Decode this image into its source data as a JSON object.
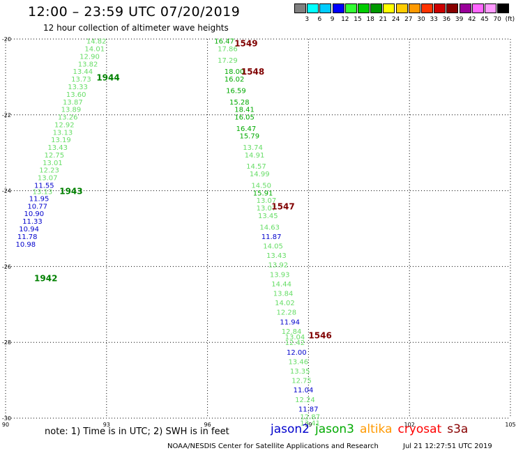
{
  "header": {
    "title": "12:00 – 23:59 UTC 07/20/2019",
    "subtitle": "12 hour collection of altimeter wave heights"
  },
  "colorbar": {
    "colors": [
      "#808080",
      "#00ffff",
      "#00ccff",
      "#0000ff",
      "#33ff33",
      "#00cc00",
      "#009900",
      "#ffff00",
      "#ffcc00",
      "#ff9900",
      "#ff3300",
      "#cc0000",
      "#880000",
      "#990099",
      "#ff66ff",
      "#ff99ff",
      "#000000"
    ],
    "labels": [
      "3",
      "6",
      "9",
      "12",
      "15",
      "18",
      "21",
      "24",
      "27",
      "30",
      "33",
      "36",
      "39",
      "42",
      "45",
      "70",
      "(ft)"
    ]
  },
  "map": {
    "lon_range": [
      90,
      105
    ],
    "lat_range": [
      -30,
      -20
    ],
    "x_ticks": [
      "90",
      "93",
      "96",
      "99",
      "102",
      "105"
    ],
    "y_ticks": [
      "-20",
      "-22",
      "-24",
      "-26",
      "-28",
      "-30"
    ],
    "grid": "dotted",
    "orbits": [
      {
        "label": "1944",
        "color": "#008000",
        "lon": 92.7,
        "lat": -21.0
      },
      {
        "label": "1943",
        "color": "#008000",
        "lon": 91.6,
        "lat": -24.0
      },
      {
        "label": "1942",
        "color": "#008000",
        "lon": 90.85,
        "lat": -26.3
      },
      {
        "label": "1549",
        "color": "#800000",
        "lon": 96.8,
        "lat": -20.1
      },
      {
        "label": "1548",
        "color": "#800000",
        "lon": 97.0,
        "lat": -20.85
      },
      {
        "label": "1547",
        "color": "#800000",
        "lon": 97.9,
        "lat": -24.4
      },
      {
        "label": "1546",
        "color": "#800000",
        "lon": 99.0,
        "lat": -27.8
      }
    ],
    "observations": [
      {
        "v": "14.82",
        "c": "#66dd66",
        "lon": 92.4,
        "lat": -20.05
      },
      {
        "v": "14.01",
        "c": "#66dd66",
        "lon": 92.35,
        "lat": -20.25
      },
      {
        "v": "12.90",
        "c": "#66dd66",
        "lon": 92.2,
        "lat": -20.45
      },
      {
        "v": "13.82",
        "c": "#66dd66",
        "lon": 92.15,
        "lat": -20.65
      },
      {
        "v": "13.44",
        "c": "#66dd66",
        "lon": 92.0,
        "lat": -20.85
      },
      {
        "v": "13.73",
        "c": "#66dd66",
        "lon": 91.95,
        "lat": -21.05
      },
      {
        "v": "13.33",
        "c": "#66dd66",
        "lon": 91.85,
        "lat": -21.25
      },
      {
        "v": "13.60",
        "c": "#66dd66",
        "lon": 91.8,
        "lat": -21.45
      },
      {
        "v": "13.87",
        "c": "#66dd66",
        "lon": 91.7,
        "lat": -21.65
      },
      {
        "v": "13.89",
        "c": "#66dd66",
        "lon": 91.65,
        "lat": -21.85
      },
      {
        "v": "13.26",
        "c": "#66dd66",
        "lon": 91.55,
        "lat": -22.05
      },
      {
        "v": "12.92",
        "c": "#66dd66",
        "lon": 91.45,
        "lat": -22.25
      },
      {
        "v": "13.13",
        "c": "#66dd66",
        "lon": 91.4,
        "lat": -22.45
      },
      {
        "v": "13.19",
        "c": "#66dd66",
        "lon": 91.35,
        "lat": -22.65
      },
      {
        "v": "13.43",
        "c": "#66dd66",
        "lon": 91.25,
        "lat": -22.85
      },
      {
        "v": "12.75",
        "c": "#66dd66",
        "lon": 91.15,
        "lat": -23.05
      },
      {
        "v": "13.01",
        "c": "#66dd66",
        "lon": 91.1,
        "lat": -23.25
      },
      {
        "v": "12.23",
        "c": "#66dd66",
        "lon": 91.0,
        "lat": -23.45
      },
      {
        "v": "13.07",
        "c": "#66dd66",
        "lon": 90.95,
        "lat": -23.65
      },
      {
        "v": "11.55",
        "c": "#0000cc",
        "lon": 90.85,
        "lat": -23.85
      },
      {
        "v": "13.13",
        "c": "#66dd66",
        "lon": 90.8,
        "lat": -24.02
      },
      {
        "v": "11.95",
        "c": "#0000cc",
        "lon": 90.7,
        "lat": -24.2
      },
      {
        "v": "10.77",
        "c": "#0000cc",
        "lon": 90.65,
        "lat": -24.4
      },
      {
        "v": "10.90",
        "c": "#0000cc",
        "lon": 90.55,
        "lat": -24.6
      },
      {
        "v": "11.33",
        "c": "#0000cc",
        "lon": 90.5,
        "lat": -24.8
      },
      {
        "v": "10.94",
        "c": "#0000cc",
        "lon": 90.4,
        "lat": -25.0
      },
      {
        "v": "11.78",
        "c": "#0000cc",
        "lon": 90.35,
        "lat": -25.2
      },
      {
        "v": "10.98",
        "c": "#0000cc",
        "lon": 90.3,
        "lat": -25.4
      },
      {
        "v": "16.47",
        "c": "#00aa00",
        "lon": 96.2,
        "lat": -20.05
      },
      {
        "v": "17.86",
        "c": "#66dd66",
        "lon": 96.3,
        "lat": -20.25
      },
      {
        "v": "17.29",
        "c": "#66dd66",
        "lon": 96.3,
        "lat": -20.55
      },
      {
        "v": "18.00",
        "c": "#00aa00",
        "lon": 96.5,
        "lat": -20.85
      },
      {
        "v": "16.02",
        "c": "#00aa00",
        "lon": 96.5,
        "lat": -21.05
      },
      {
        "v": "16.59",
        "c": "#00aa00",
        "lon": 96.55,
        "lat": -21.35
      },
      {
        "v": "15.28",
        "c": "#00aa00",
        "lon": 96.65,
        "lat": -21.65
      },
      {
        "v": "18.41",
        "c": "#00aa00",
        "lon": 96.8,
        "lat": -21.85
      },
      {
        "v": "16.05",
        "c": "#00aa00",
        "lon": 96.8,
        "lat": -22.05
      },
      {
        "v": "16.47",
        "c": "#00aa00",
        "lon": 96.85,
        "lat": -22.35
      },
      {
        "v": "15.79",
        "c": "#00aa00",
        "lon": 96.95,
        "lat": -22.55
      },
      {
        "v": "13.74",
        "c": "#66dd66",
        "lon": 97.05,
        "lat": -22.85
      },
      {
        "v": "14.91",
        "c": "#66dd66",
        "lon": 97.1,
        "lat": -23.05
      },
      {
        "v": "14.57",
        "c": "#66dd66",
        "lon": 97.15,
        "lat": -23.35
      },
      {
        "v": "14.99",
        "c": "#66dd66",
        "lon": 97.25,
        "lat": -23.55
      },
      {
        "v": "14.50",
        "c": "#66dd66",
        "lon": 97.3,
        "lat": -23.85
      },
      {
        "v": "15.91",
        "c": "#00aa00",
        "lon": 97.35,
        "lat": -24.05
      },
      {
        "v": "13.07",
        "c": "#66dd66",
        "lon": 97.45,
        "lat": -24.25
      },
      {
        "v": "13.07",
        "c": "#66dd66",
        "lon": 97.45,
        "lat": -24.45
      },
      {
        "v": "13.45",
        "c": "#66dd66",
        "lon": 97.5,
        "lat": -24.65
      },
      {
        "v": "14.63",
        "c": "#66dd66",
        "lon": 97.55,
        "lat": -24.95
      },
      {
        "v": "11.87",
        "c": "#0000cc",
        "lon": 97.6,
        "lat": -25.2
      },
      {
        "v": "14.05",
        "c": "#66dd66",
        "lon": 97.65,
        "lat": -25.45
      },
      {
        "v": "13.43",
        "c": "#66dd66",
        "lon": 97.75,
        "lat": -25.7
      },
      {
        "v": "13.92",
        "c": "#66dd66",
        "lon": 97.8,
        "lat": -25.95
      },
      {
        "v": "13.93",
        "c": "#66dd66",
        "lon": 97.85,
        "lat": -26.2
      },
      {
        "v": "14.44",
        "c": "#66dd66",
        "lon": 97.9,
        "lat": -26.45
      },
      {
        "v": "13.84",
        "c": "#66dd66",
        "lon": 97.95,
        "lat": -26.7
      },
      {
        "v": "14.02",
        "c": "#66dd66",
        "lon": 98.0,
        "lat": -26.95
      },
      {
        "v": "12.28",
        "c": "#66dd66",
        "lon": 98.05,
        "lat": -27.2
      },
      {
        "v": "11.94",
        "c": "#0000cc",
        "lon": 98.15,
        "lat": -27.45
      },
      {
        "v": "12.84",
        "c": "#66dd66",
        "lon": 98.2,
        "lat": -27.7
      },
      {
        "v": "13.04",
        "c": "#66dd66",
        "lon": 98.3,
        "lat": -27.85
      },
      {
        "v": "12.42",
        "c": "#66dd66",
        "lon": 98.3,
        "lat": -28.0
      },
      {
        "v": "12.00",
        "c": "#0000cc",
        "lon": 98.35,
        "lat": -28.25
      },
      {
        "v": "13.46",
        "c": "#66dd66",
        "lon": 98.4,
        "lat": -28.5
      },
      {
        "v": "13.35",
        "c": "#66dd66",
        "lon": 98.45,
        "lat": -28.75
      },
      {
        "v": "12.75",
        "c": "#66dd66",
        "lon": 98.5,
        "lat": -29.0
      },
      {
        "v": "11.04",
        "c": "#0000cc",
        "lon": 98.55,
        "lat": -29.25
      },
      {
        "v": "12.24",
        "c": "#66dd66",
        "lon": 98.6,
        "lat": -29.5
      },
      {
        "v": "11.87",
        "c": "#0000cc",
        "lon": 98.7,
        "lat": -29.75
      },
      {
        "v": "12.87",
        "c": "#66dd66",
        "lon": 98.75,
        "lat": -29.95
      },
      {
        "v": "13.41",
        "c": "#66dd66",
        "lon": 98.75,
        "lat": -30.12
      }
    ]
  },
  "footer": {
    "note": "note: 1) Time is in UTC; 2) SWH is in feet",
    "legend": [
      {
        "name": "jason2",
        "color": "#0000cc"
      },
      {
        "name": "jason3",
        "color": "#00aa00"
      },
      {
        "name": "altika",
        "color": "#ff9900"
      },
      {
        "name": "cryosat",
        "color": "#ff0000"
      },
      {
        "name": "s3a",
        "color": "#880000"
      }
    ],
    "credit": "NOAA/NESDIS Center for Satellite Applications and Research",
    "timestamp": "Jul 21 12:27:51 UTC 2019"
  }
}
